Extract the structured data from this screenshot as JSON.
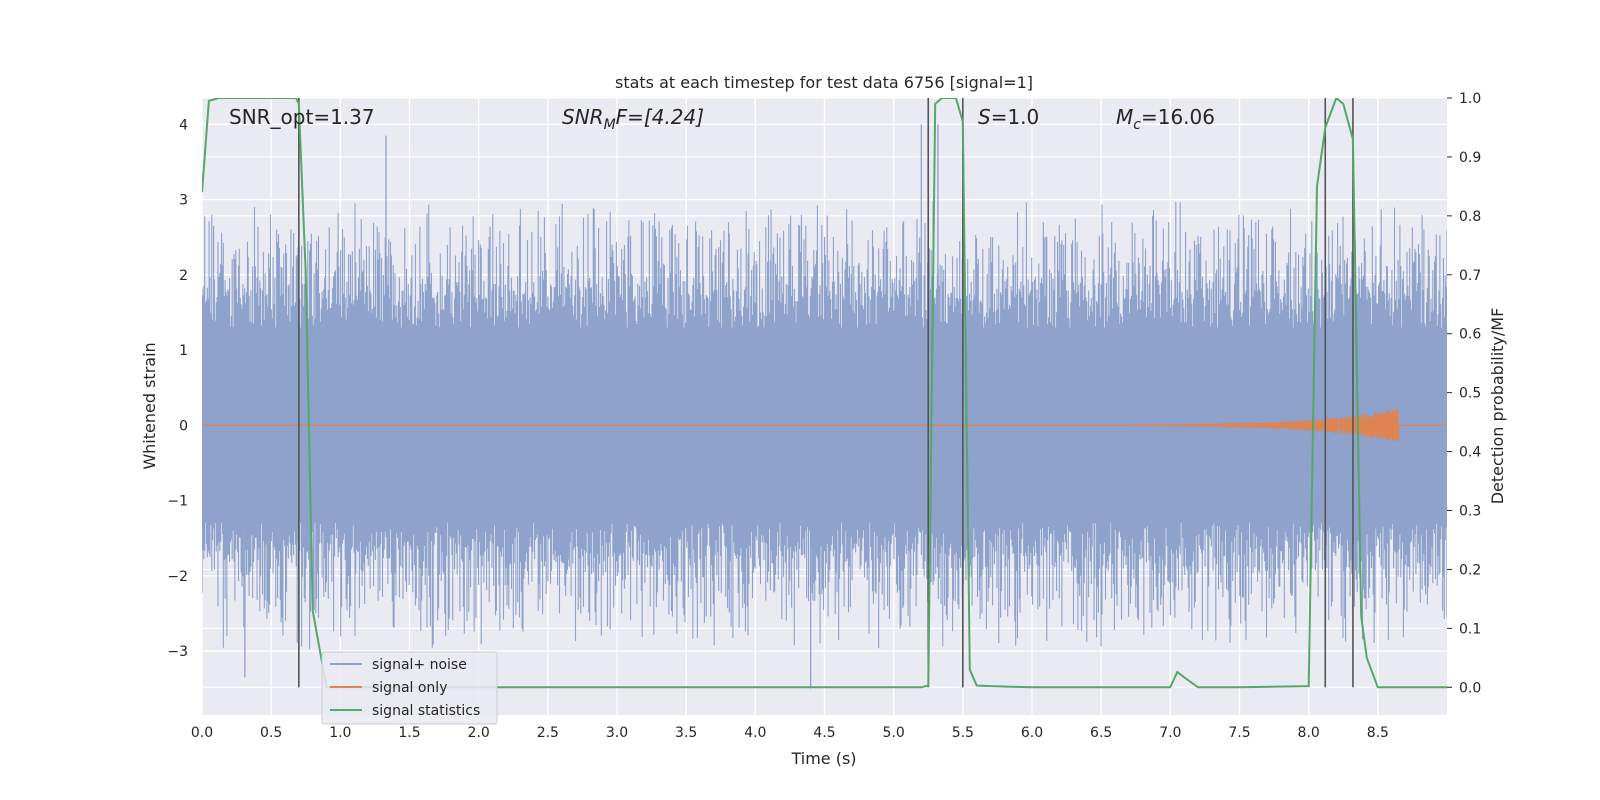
{
  "chart_data": {
    "type": "line",
    "title": "stats at each timestep for test data 6756 [signal=1]",
    "xlabel": "Time (s)",
    "ylabel_left": "Whitened strain",
    "ylabel_right": "Detection probability/MF",
    "xlim": [
      0.0,
      9.0
    ],
    "ylim_left": [
      -3.85,
      4.35
    ],
    "ylim_right": [
      -0.047,
      1.0
    ],
    "x_ticks": [
      "0.0",
      "0.5",
      "1.0",
      "1.5",
      "2.0",
      "2.5",
      "3.0",
      "3.5",
      "4.0",
      "4.5",
      "5.0",
      "5.5",
      "6.0",
      "6.5",
      "7.0",
      "7.5",
      "8.0",
      "8.5"
    ],
    "y_ticks_left": [
      "4",
      "3",
      "2",
      "1",
      "0",
      "−1",
      "−2",
      "−3"
    ],
    "y_ticks_right": [
      "1.0",
      "0.9",
      "0.8",
      "0.7",
      "0.6",
      "0.5",
      "0.4",
      "0.3",
      "0.2",
      "0.1",
      "0.0"
    ],
    "grid": true,
    "legend_position": "lower-left",
    "annotations": {
      "snr_opt": "SNR_opt=1.37",
      "snr_mf_a": "SNR",
      "snr_mf_sub": "M",
      "snr_mf_b": "F=[4.24]",
      "s_a": "S",
      "s_b": "=1.0",
      "mc_a": "M",
      "mc_sub": "c",
      "mc_b": "=16.06"
    },
    "series": [
      {
        "name": "signal+ noise",
        "axis": "left",
        "color": "#8ea2cb",
        "style": "noisy band",
        "core_range": [
          -1.3,
          1.3
        ],
        "spike_peaks": [
          {
            "x": 1.33,
            "y": 3.85
          },
          {
            "x": 5.2,
            "y": 4.0
          },
          {
            "x": 5.32,
            "y": 4.0
          },
          {
            "x": 4.4,
            "y": -3.5
          },
          {
            "x": 0.31,
            "y": -3.35
          }
        ]
      },
      {
        "name": "signal only",
        "axis": "left",
        "color": "#dd8452",
        "style": "chirp",
        "baseline": 0,
        "chirp_start": 6.7,
        "chirp_end": 8.65,
        "chirp_max_amplitude": 0.22
      },
      {
        "name": "signal statistics",
        "axis": "right",
        "color": "#55a868",
        "x": [
          0.0,
          0.05,
          0.12,
          0.3,
          0.5,
          0.68,
          0.7,
          0.75,
          0.8,
          0.9,
          1.5,
          3.0,
          4.5,
          5.0,
          5.2,
          5.25,
          5.3,
          5.35,
          5.4,
          5.45,
          5.5,
          5.55,
          5.6,
          5.7,
          6.0,
          6.5,
          7.0,
          7.05,
          7.1,
          7.2,
          7.5,
          8.0,
          8.06,
          8.12,
          8.2,
          8.25,
          8.32,
          8.38,
          8.42,
          8.5,
          8.6,
          9.0
        ],
        "y": [
          0.84,
          0.995,
          1.0,
          1.0,
          1.0,
          1.0,
          0.99,
          0.7,
          0.13,
          0.0,
          0.0,
          0.0,
          0.0,
          0.0,
          0.0,
          0.003,
          0.99,
          1.0,
          1.0,
          1.0,
          0.96,
          0.03,
          0.003,
          0.002,
          0.0,
          0.0,
          0.0,
          0.026,
          0.017,
          0.0,
          0.0,
          0.002,
          0.85,
          0.95,
          1.0,
          0.99,
          0.93,
          0.12,
          0.05,
          0.0,
          0.0,
          0.0
        ]
      }
    ],
    "vertical_lines": {
      "color": "#555555",
      "x": [
        0.7,
        5.25,
        5.5,
        8.12,
        8.32
      ]
    }
  }
}
